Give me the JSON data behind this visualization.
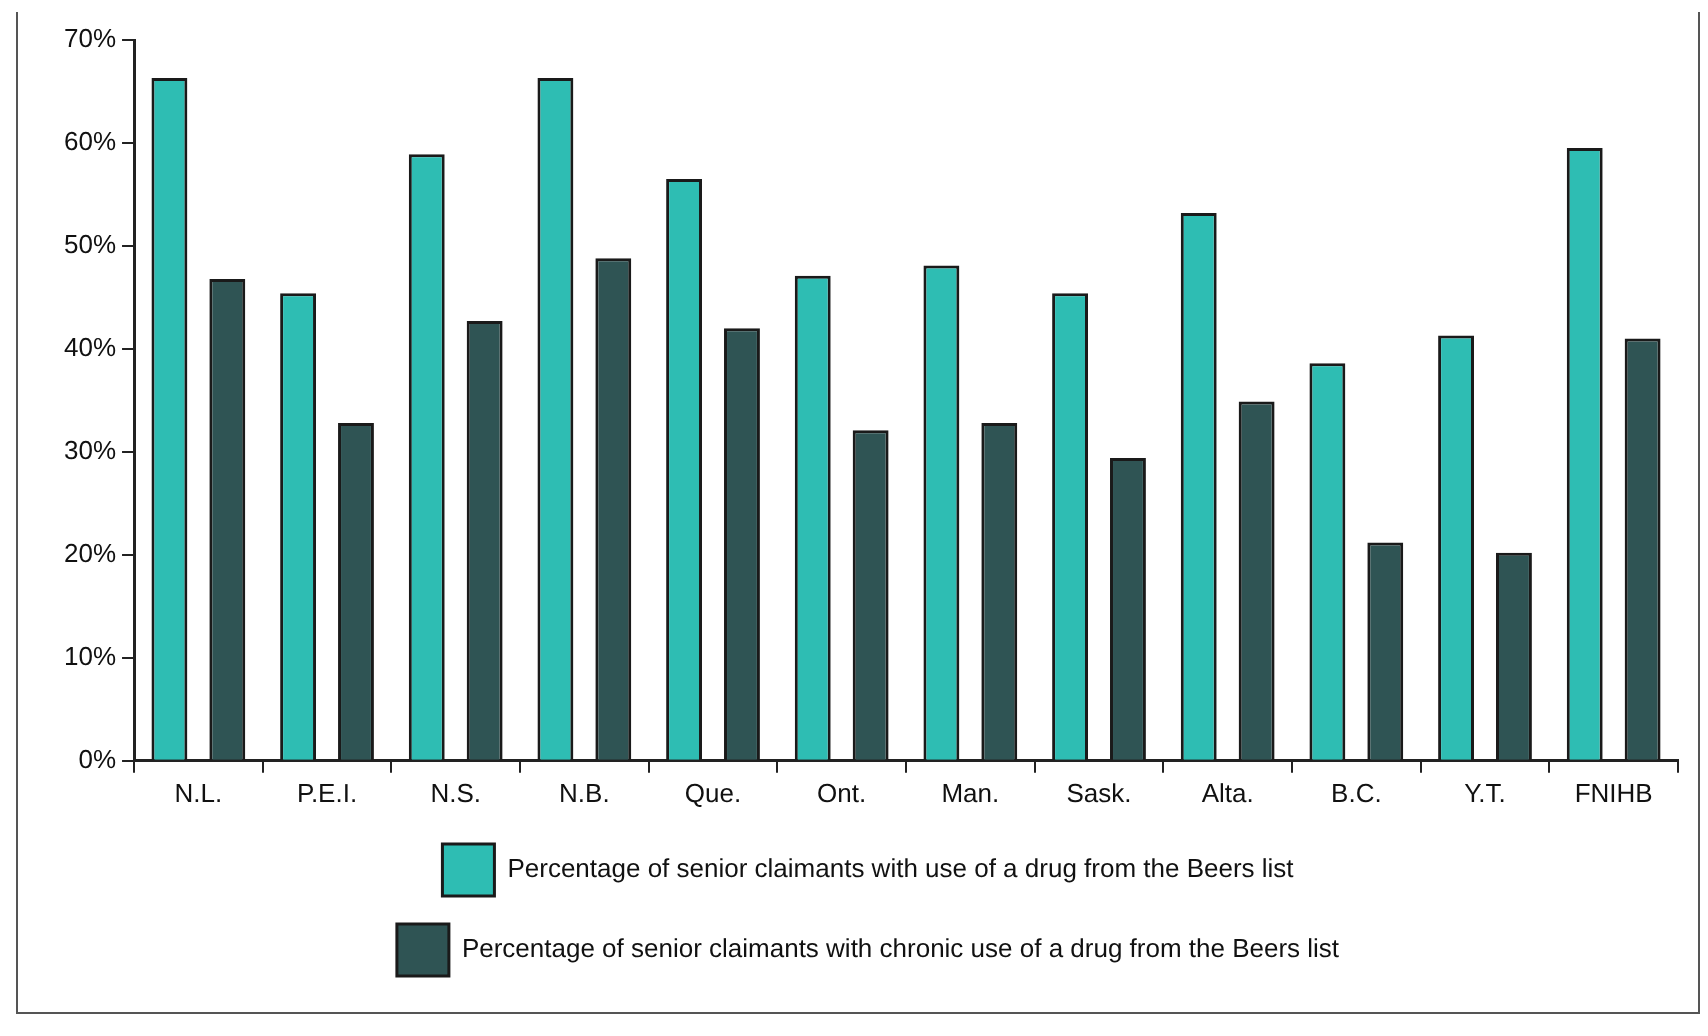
{
  "chart_data": {
    "type": "bar",
    "categories": [
      "N.L.",
      "P.E.I.",
      "N.S.",
      "N.B.",
      "Que.",
      "Ont.",
      "Man.",
      "Sask.",
      "Alta.",
      "B.C.",
      "Y.T.",
      "FNIHB"
    ],
    "series": [
      {
        "name": "Percentage of senior claimants with use of a drug from the Beers list",
        "color": "#2ebdb3",
        "values": [
          66.3,
          45.4,
          58.9,
          66.3,
          56.5,
          47.1,
          48.1,
          45.4,
          53.2,
          38.6,
          41.3,
          59.5
        ]
      },
      {
        "name": "Percentage of senior claimants with chronic use of a drug from the Beers list",
        "color": "#2f5454",
        "values": [
          46.8,
          32.8,
          42.7,
          48.8,
          42.0,
          32.1,
          32.8,
          29.4,
          34.9,
          21.2,
          20.2,
          41.0
        ]
      }
    ],
    "ylim": [
      0,
      70
    ],
    "yticks": [
      {
        "value": 0,
        "label": "0%"
      },
      {
        "value": 10,
        "label": "10%"
      },
      {
        "value": 20,
        "label": "20%"
      },
      {
        "value": 30,
        "label": "30%"
      },
      {
        "value": 40,
        "label": "40%"
      },
      {
        "value": 50,
        "label": "50%"
      },
      {
        "value": 60,
        "label": "60%"
      },
      {
        "value": 70,
        "label": "70%"
      }
    ],
    "grid": false,
    "legend": "bottom"
  }
}
